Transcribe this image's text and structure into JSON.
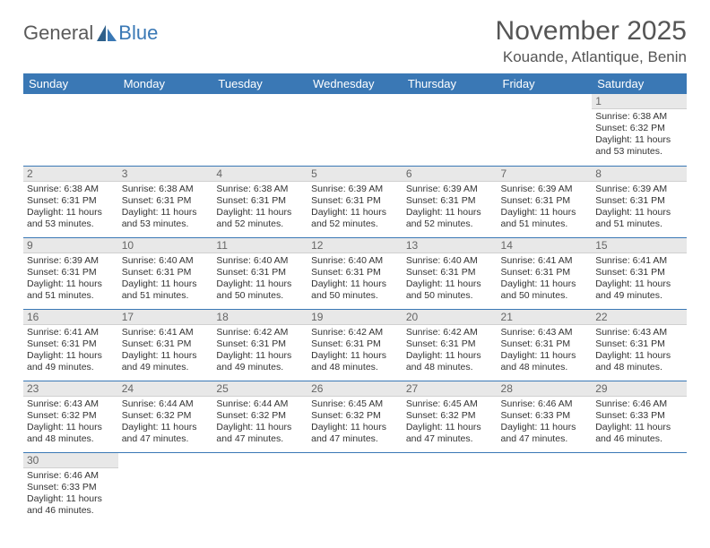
{
  "logo": {
    "text1": "General",
    "text2": "Blue"
  },
  "title": "November 2025",
  "subtitle": "Kouande, Atlantique, Benin",
  "colors": {
    "header_bg": "#3a78b5",
    "header_text": "#ffffff",
    "daynum_bg": "#e8e8e8",
    "daynum_text": "#666666",
    "row_border": "#3a78b5",
    "title_color": "#555555",
    "body_text": "#333333",
    "logo_gray": "#5a5a5a",
    "logo_blue": "#3a78b5"
  },
  "day_headers": [
    "Sunday",
    "Monday",
    "Tuesday",
    "Wednesday",
    "Thursday",
    "Friday",
    "Saturday"
  ],
  "weeks": [
    [
      null,
      null,
      null,
      null,
      null,
      null,
      {
        "n": "1",
        "sr": "Sunrise: 6:38 AM",
        "ss": "Sunset: 6:32 PM",
        "dl": "Daylight: 11 hours and 53 minutes."
      }
    ],
    [
      {
        "n": "2",
        "sr": "Sunrise: 6:38 AM",
        "ss": "Sunset: 6:31 PM",
        "dl": "Daylight: 11 hours and 53 minutes."
      },
      {
        "n": "3",
        "sr": "Sunrise: 6:38 AM",
        "ss": "Sunset: 6:31 PM",
        "dl": "Daylight: 11 hours and 53 minutes."
      },
      {
        "n": "4",
        "sr": "Sunrise: 6:38 AM",
        "ss": "Sunset: 6:31 PM",
        "dl": "Daylight: 11 hours and 52 minutes."
      },
      {
        "n": "5",
        "sr": "Sunrise: 6:39 AM",
        "ss": "Sunset: 6:31 PM",
        "dl": "Daylight: 11 hours and 52 minutes."
      },
      {
        "n": "6",
        "sr": "Sunrise: 6:39 AM",
        "ss": "Sunset: 6:31 PM",
        "dl": "Daylight: 11 hours and 52 minutes."
      },
      {
        "n": "7",
        "sr": "Sunrise: 6:39 AM",
        "ss": "Sunset: 6:31 PM",
        "dl": "Daylight: 11 hours and 51 minutes."
      },
      {
        "n": "8",
        "sr": "Sunrise: 6:39 AM",
        "ss": "Sunset: 6:31 PM",
        "dl": "Daylight: 11 hours and 51 minutes."
      }
    ],
    [
      {
        "n": "9",
        "sr": "Sunrise: 6:39 AM",
        "ss": "Sunset: 6:31 PM",
        "dl": "Daylight: 11 hours and 51 minutes."
      },
      {
        "n": "10",
        "sr": "Sunrise: 6:40 AM",
        "ss": "Sunset: 6:31 PM",
        "dl": "Daylight: 11 hours and 51 minutes."
      },
      {
        "n": "11",
        "sr": "Sunrise: 6:40 AM",
        "ss": "Sunset: 6:31 PM",
        "dl": "Daylight: 11 hours and 50 minutes."
      },
      {
        "n": "12",
        "sr": "Sunrise: 6:40 AM",
        "ss": "Sunset: 6:31 PM",
        "dl": "Daylight: 11 hours and 50 minutes."
      },
      {
        "n": "13",
        "sr": "Sunrise: 6:40 AM",
        "ss": "Sunset: 6:31 PM",
        "dl": "Daylight: 11 hours and 50 minutes."
      },
      {
        "n": "14",
        "sr": "Sunrise: 6:41 AM",
        "ss": "Sunset: 6:31 PM",
        "dl": "Daylight: 11 hours and 50 minutes."
      },
      {
        "n": "15",
        "sr": "Sunrise: 6:41 AM",
        "ss": "Sunset: 6:31 PM",
        "dl": "Daylight: 11 hours and 49 minutes."
      }
    ],
    [
      {
        "n": "16",
        "sr": "Sunrise: 6:41 AM",
        "ss": "Sunset: 6:31 PM",
        "dl": "Daylight: 11 hours and 49 minutes."
      },
      {
        "n": "17",
        "sr": "Sunrise: 6:41 AM",
        "ss": "Sunset: 6:31 PM",
        "dl": "Daylight: 11 hours and 49 minutes."
      },
      {
        "n": "18",
        "sr": "Sunrise: 6:42 AM",
        "ss": "Sunset: 6:31 PM",
        "dl": "Daylight: 11 hours and 49 minutes."
      },
      {
        "n": "19",
        "sr": "Sunrise: 6:42 AM",
        "ss": "Sunset: 6:31 PM",
        "dl": "Daylight: 11 hours and 48 minutes."
      },
      {
        "n": "20",
        "sr": "Sunrise: 6:42 AM",
        "ss": "Sunset: 6:31 PM",
        "dl": "Daylight: 11 hours and 48 minutes."
      },
      {
        "n": "21",
        "sr": "Sunrise: 6:43 AM",
        "ss": "Sunset: 6:31 PM",
        "dl": "Daylight: 11 hours and 48 minutes."
      },
      {
        "n": "22",
        "sr": "Sunrise: 6:43 AM",
        "ss": "Sunset: 6:31 PM",
        "dl": "Daylight: 11 hours and 48 minutes."
      }
    ],
    [
      {
        "n": "23",
        "sr": "Sunrise: 6:43 AM",
        "ss": "Sunset: 6:32 PM",
        "dl": "Daylight: 11 hours and 48 minutes."
      },
      {
        "n": "24",
        "sr": "Sunrise: 6:44 AM",
        "ss": "Sunset: 6:32 PM",
        "dl": "Daylight: 11 hours and 47 minutes."
      },
      {
        "n": "25",
        "sr": "Sunrise: 6:44 AM",
        "ss": "Sunset: 6:32 PM",
        "dl": "Daylight: 11 hours and 47 minutes."
      },
      {
        "n": "26",
        "sr": "Sunrise: 6:45 AM",
        "ss": "Sunset: 6:32 PM",
        "dl": "Daylight: 11 hours and 47 minutes."
      },
      {
        "n": "27",
        "sr": "Sunrise: 6:45 AM",
        "ss": "Sunset: 6:32 PM",
        "dl": "Daylight: 11 hours and 47 minutes."
      },
      {
        "n": "28",
        "sr": "Sunrise: 6:46 AM",
        "ss": "Sunset: 6:33 PM",
        "dl": "Daylight: 11 hours and 47 minutes."
      },
      {
        "n": "29",
        "sr": "Sunrise: 6:46 AM",
        "ss": "Sunset: 6:33 PM",
        "dl": "Daylight: 11 hours and 46 minutes."
      }
    ],
    [
      {
        "n": "30",
        "sr": "Sunrise: 6:46 AM",
        "ss": "Sunset: 6:33 PM",
        "dl": "Daylight: 11 hours and 46 minutes."
      },
      null,
      null,
      null,
      null,
      null,
      null
    ]
  ]
}
